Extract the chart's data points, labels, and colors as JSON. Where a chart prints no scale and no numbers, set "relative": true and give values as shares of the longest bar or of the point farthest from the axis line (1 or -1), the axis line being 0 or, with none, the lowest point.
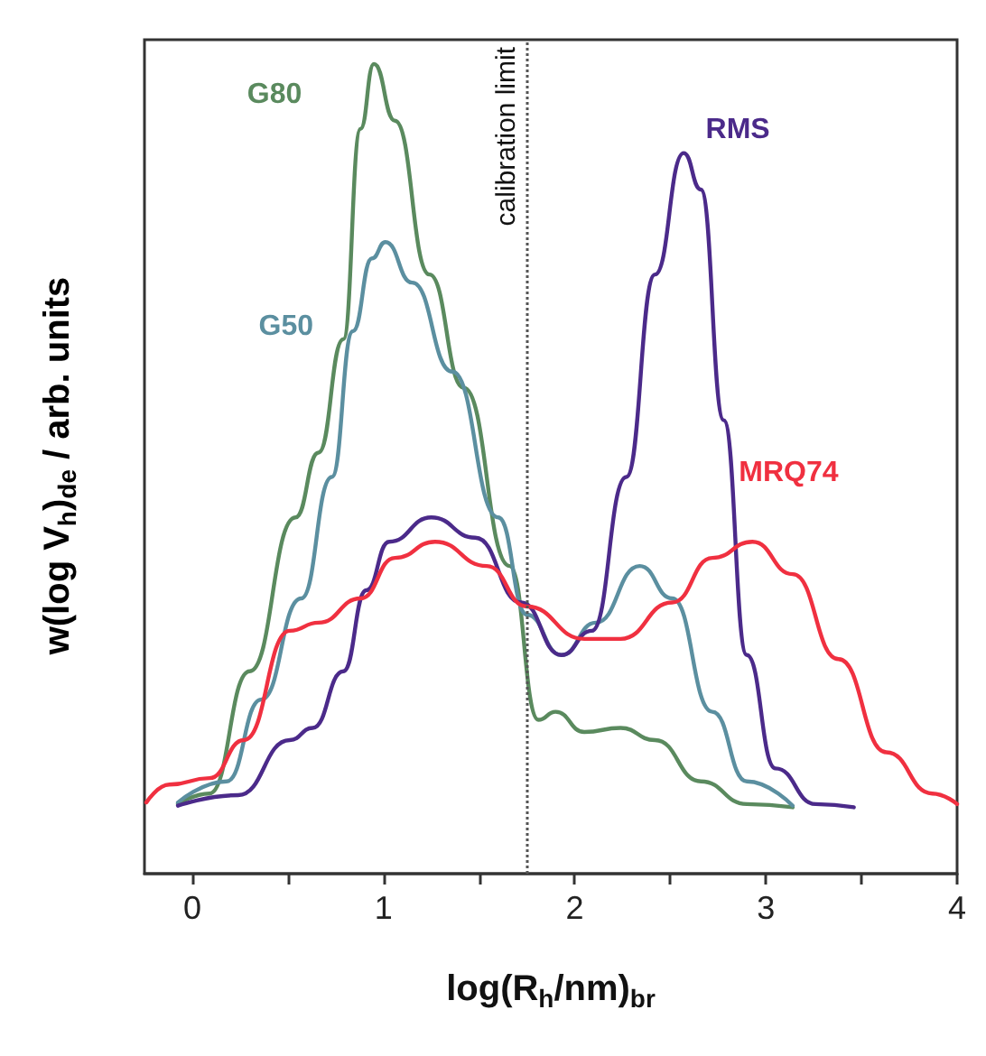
{
  "chart_data": {
    "type": "line",
    "relative": true,
    "xlabel": "log(R$_{h}$/nm)$_{br}$",
    "ylabel": "w(log V$_{h}$)$_{de}$ / arb. units",
    "xlim": [
      -0.25,
      4
    ],
    "xticks": [
      0,
      {
        "value": 0.5,
        "label": null
      },
      1,
      {
        "value": 1.5,
        "label": null
      },
      2,
      {
        "value": 2.5,
        "label": null
      },
      3,
      {
        "value": 3.5,
        "label": null
      },
      4
    ],
    "grid": false,
    "legend": false,
    "marker": "none",
    "line_style": "solid",
    "ref_lines": [
      {
        "axis": "x",
        "value": 1.75,
        "label": "calibration limit",
        "line_style": "dotted",
        "color": "#555555"
      }
    ],
    "series": [
      {
        "name": "G80",
        "color": "#5a8a5e",
        "x": [
          -0.075,
          0.09,
          0.3,
          0.54,
          0.66,
          0.79,
          0.88,
          0.95,
          1.06,
          1.24,
          1.42,
          1.66,
          1.81,
          1.9,
          2.05,
          2.24,
          2.42,
          2.66,
          2.9,
          3.14
        ],
        "values": [
          0.086,
          0.099,
          0.25,
          0.44,
          0.52,
          0.66,
          0.92,
          1.0,
          0.93,
          0.74,
          0.6,
          0.38,
          0.19,
          0.2,
          0.175,
          0.18,
          0.165,
          0.114,
          0.086,
          0.082
        ]
      },
      {
        "name": "G50",
        "color": "#5b8fa0",
        "x": [
          -0.075,
          0.18,
          0.36,
          0.57,
          0.73,
          0.84,
          0.94,
          1.01,
          1.15,
          1.36,
          1.6,
          1.75,
          1.93,
          2.11,
          2.34,
          2.51,
          2.72,
          2.9,
          3.14
        ],
        "values": [
          0.088,
          0.114,
          0.215,
          0.34,
          0.49,
          0.67,
          0.76,
          0.78,
          0.73,
          0.62,
          0.44,
          0.32,
          0.27,
          0.31,
          0.38,
          0.34,
          0.2,
          0.114,
          0.084
        ]
      },
      {
        "name": "RMS",
        "color": "#4b2a8a",
        "x": [
          -0.075,
          0.24,
          0.51,
          0.63,
          0.79,
          0.91,
          1.03,
          1.25,
          1.48,
          1.72,
          1.93,
          2.09,
          2.27,
          2.42,
          2.57,
          2.66,
          2.78,
          2.9,
          3.05,
          3.26,
          3.46
        ],
        "values": [
          0.084,
          0.097,
          0.165,
          0.18,
          0.25,
          0.35,
          0.41,
          0.44,
          0.415,
          0.335,
          0.27,
          0.3,
          0.49,
          0.74,
          0.89,
          0.845,
          0.56,
          0.27,
          0.13,
          0.086,
          0.082
        ]
      },
      {
        "name": "MRQ74",
        "color": "#f03040",
        "x": [
          -0.24,
          -0.12,
          0.09,
          0.27,
          0.51,
          0.66,
          0.88,
          1.06,
          1.27,
          1.54,
          1.75,
          2.05,
          2.24,
          2.51,
          2.72,
          2.93,
          3.14,
          3.38,
          3.63,
          3.87,
          4.0
        ],
        "values": [
          0.088,
          0.11,
          0.118,
          0.165,
          0.3,
          0.31,
          0.34,
          0.39,
          0.41,
          0.38,
          0.33,
          0.29,
          0.29,
          0.335,
          0.39,
          0.41,
          0.37,
          0.265,
          0.15,
          0.099,
          0.086
        ]
      }
    ]
  }
}
